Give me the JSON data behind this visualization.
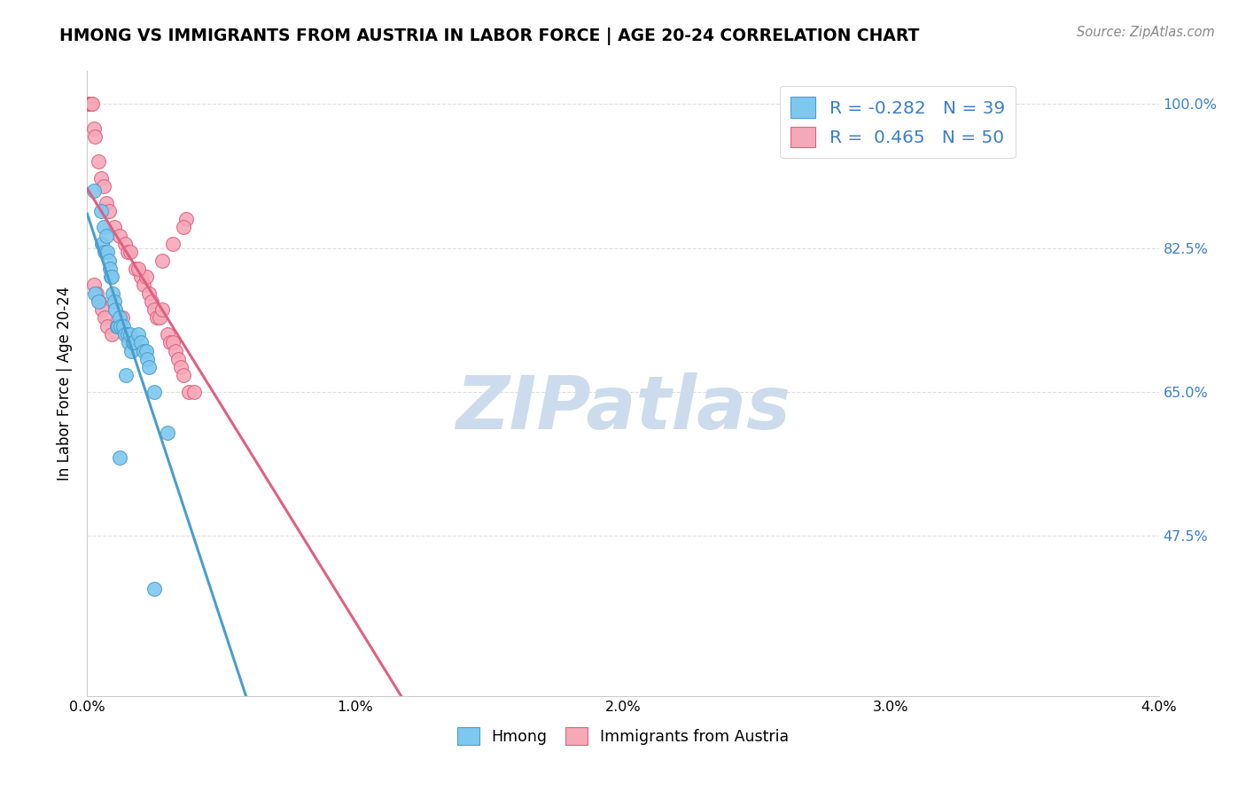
{
  "title": "HMONG VS IMMIGRANTS FROM AUSTRIA IN LABOR FORCE | AGE 20-24 CORRELATION CHART",
  "source": "Source: ZipAtlas.com",
  "ylabel": "In Labor Force | Age 20-24",
  "xlim": [
    0.0,
    0.04
  ],
  "ylim": [
    0.28,
    1.04
  ],
  "xtick_labels": [
    "0.0%",
    "1.0%",
    "2.0%",
    "3.0%",
    "4.0%"
  ],
  "xtick_vals": [
    0.0,
    0.01,
    0.02,
    0.03,
    0.04
  ],
  "ytick_right_labels": [
    "100.0%",
    "82.5%",
    "65.0%",
    "47.5%"
  ],
  "ytick_right_vals": [
    1.0,
    0.825,
    0.65,
    0.475
  ],
  "legend_R1": "-0.282",
  "legend_N1": "39",
  "legend_R2": "0.465",
  "legend_N2": "50",
  "legend_text_color": "#3A7ECC",
  "blue_face": "#7EC8F0",
  "pink_face": "#F5A8B8",
  "blue_edge": "#4A9ECC",
  "pink_edge": "#E06080",
  "blue_line": "#4A9ECC",
  "pink_line": "#E06080",
  "watermark": "ZIPatlas",
  "watermark_color": "#CCDCEC",
  "legend_bottom_label1": "Hmong",
  "legend_bottom_label2": "Immigrants from Austria",
  "hmong_x": [
    0.00025,
    0.0005,
    0.00055,
    0.0006,
    0.00065,
    0.0007,
    0.00075,
    0.0008,
    0.00085,
    0.00087,
    0.0009,
    0.00095,
    0.001,
    0.00105,
    0.0011,
    0.00115,
    0.0012,
    0.00125,
    0.00135,
    0.0014,
    0.0015,
    0.00155,
    0.0016,
    0.00165,
    0.0017,
    0.00175,
    0.0019,
    0.002,
    0.0021,
    0.0022,
    0.00225,
    0.0023,
    0.0025,
    0.003,
    0.0003,
    0.0004,
    0.0012,
    0.00145,
    0.0025
  ],
  "hmong_y": [
    0.895,
    0.87,
    0.83,
    0.85,
    0.82,
    0.84,
    0.82,
    0.81,
    0.8,
    0.79,
    0.79,
    0.77,
    0.76,
    0.75,
    0.73,
    0.73,
    0.74,
    0.73,
    0.73,
    0.72,
    0.72,
    0.71,
    0.72,
    0.7,
    0.71,
    0.71,
    0.72,
    0.71,
    0.7,
    0.7,
    0.69,
    0.68,
    0.65,
    0.6,
    0.77,
    0.76,
    0.57,
    0.67,
    0.41
  ],
  "austria_x": [
    5e-05,
    7e-05,
    0.0001,
    0.00015,
    0.0002,
    0.00025,
    0.0003,
    0.0004,
    0.0005,
    0.0006,
    0.0007,
    0.0008,
    0.001,
    0.0012,
    0.0014,
    0.0015,
    0.0016,
    0.0018,
    0.002,
    0.0021,
    0.0022,
    0.0023,
    0.0024,
    0.0025,
    0.0026,
    0.0027,
    0.0028,
    0.003,
    0.0031,
    0.0032,
    0.0033,
    0.0034,
    0.0035,
    0.0036,
    0.0037,
    0.0038,
    0.004,
    0.0028,
    0.0032,
    0.0036,
    0.00025,
    0.00035,
    0.00045,
    0.00055,
    0.00065,
    0.00075,
    0.0009,
    0.0011,
    0.0013,
    0.0019
  ],
  "austria_y": [
    1.0,
    1.0,
    1.0,
    1.0,
    1.0,
    0.97,
    0.96,
    0.93,
    0.91,
    0.9,
    0.88,
    0.87,
    0.85,
    0.84,
    0.83,
    0.82,
    0.82,
    0.8,
    0.79,
    0.78,
    0.79,
    0.77,
    0.76,
    0.75,
    0.74,
    0.74,
    0.75,
    0.72,
    0.71,
    0.71,
    0.7,
    0.69,
    0.68,
    0.67,
    0.86,
    0.65,
    0.65,
    0.81,
    0.83,
    0.85,
    0.78,
    0.77,
    0.76,
    0.75,
    0.74,
    0.73,
    0.72,
    0.73,
    0.74,
    0.8
  ],
  "grid_color": "#DDDDDD",
  "border_color": "#CCCCCC"
}
